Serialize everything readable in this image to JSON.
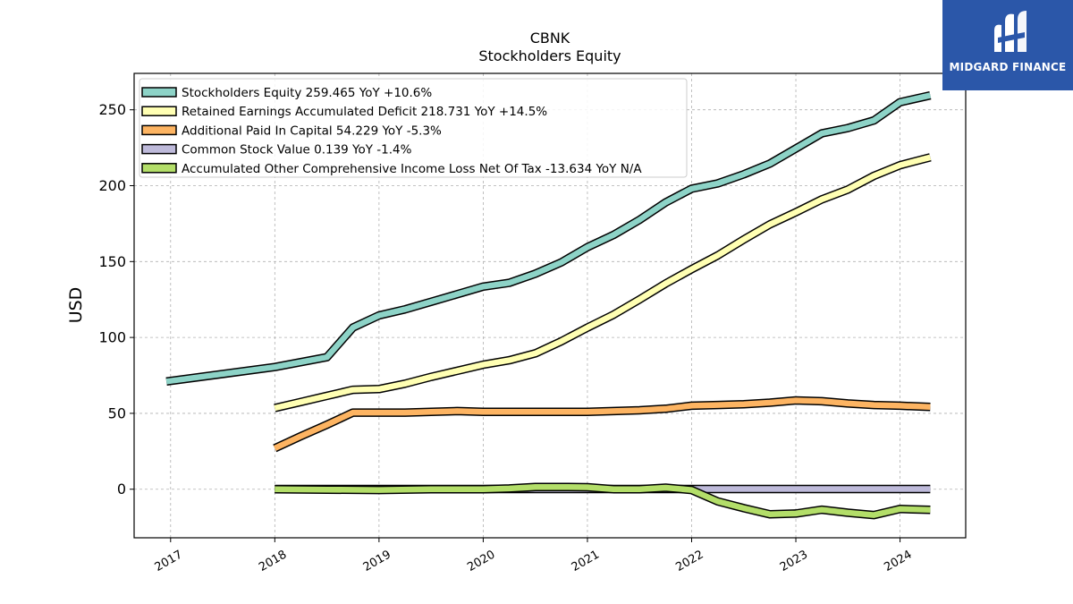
{
  "chart_data": {
    "type": "line",
    "title": "CBNK",
    "subtitle": "Stockholders  Equity",
    "ylabel": "USD",
    "xlabel": "",
    "xlim": [
      2016.65,
      2024.63
    ],
    "ylim": [
      -32,
      274
    ],
    "xticks": [
      2017,
      2018,
      2019,
      2020,
      2021,
      2022,
      2023,
      2024
    ],
    "xtick_labels": [
      "2017",
      "2018",
      "2019",
      "2020",
      "2021",
      "2022",
      "2023",
      "2024"
    ],
    "yticks": [
      0,
      50,
      100,
      150,
      200,
      250
    ],
    "ytick_labels": [
      "0",
      "50",
      "100",
      "150",
      "200",
      "250"
    ],
    "grid": true,
    "legend_position": "top-left",
    "series": [
      {
        "name": "Stockholders Equity  259.465 YoY +10.6%",
        "color": "#8dd3c7",
        "points": [
          [
            2016.96,
            71
          ],
          [
            2018.0,
            80.5
          ],
          [
            2018.5,
            87
          ],
          [
            2018.75,
            106.5
          ],
          [
            2019.0,
            114.5
          ],
          [
            2019.25,
            118.5
          ],
          [
            2019.5,
            123.5
          ],
          [
            2019.75,
            128.5
          ],
          [
            2020.0,
            133.5
          ],
          [
            2020.25,
            136
          ],
          [
            2020.5,
            142
          ],
          [
            2020.75,
            149.5
          ],
          [
            2021.0,
            159.5
          ],
          [
            2021.25,
            167.5
          ],
          [
            2021.5,
            177.5
          ],
          [
            2021.75,
            189
          ],
          [
            2022.0,
            198
          ],
          [
            2022.25,
            201.5
          ],
          [
            2022.5,
            207.5
          ],
          [
            2022.75,
            214.5
          ],
          [
            2023.0,
            224.5
          ],
          [
            2023.25,
            234.5
          ],
          [
            2023.5,
            238
          ],
          [
            2023.75,
            243
          ],
          [
            2024.0,
            255
          ],
          [
            2024.29,
            259.5
          ]
        ]
      },
      {
        "name": "Retained Earnings Accumulated Deficit  218.731 YoY +14.5%",
        "color": "#ffffb3",
        "points": [
          [
            2018.0,
            53.5
          ],
          [
            2018.25,
            57.5
          ],
          [
            2018.5,
            61.5
          ],
          [
            2018.75,
            65.5
          ],
          [
            2019.0,
            66
          ],
          [
            2019.25,
            69.5
          ],
          [
            2019.5,
            74
          ],
          [
            2019.75,
            78
          ],
          [
            2020.0,
            82
          ],
          [
            2020.25,
            85
          ],
          [
            2020.5,
            89.5
          ],
          [
            2020.75,
            97.5
          ],
          [
            2021.0,
            106.5
          ],
          [
            2021.25,
            115
          ],
          [
            2021.5,
            125
          ],
          [
            2021.75,
            135.5
          ],
          [
            2022.0,
            145
          ],
          [
            2022.25,
            154
          ],
          [
            2022.5,
            164.5
          ],
          [
            2022.75,
            174.5
          ],
          [
            2023.0,
            182.5
          ],
          [
            2023.25,
            191
          ],
          [
            2023.5,
            197.5
          ],
          [
            2023.75,
            206.5
          ],
          [
            2024.0,
            213.5
          ],
          [
            2024.29,
            218.7
          ]
        ]
      },
      {
        "name": "Additional Paid In Capital  54.229 YoY -5.3%",
        "color": "#fdb462",
        "points": [
          [
            2018.0,
            27
          ],
          [
            2018.25,
            35
          ],
          [
            2018.5,
            42.5
          ],
          [
            2018.75,
            50.5
          ],
          [
            2019.0,
            50.5
          ],
          [
            2019.25,
            50.5
          ],
          [
            2019.5,
            51
          ],
          [
            2019.75,
            51.5
          ],
          [
            2020.0,
            51
          ],
          [
            2020.25,
            51
          ],
          [
            2020.5,
            51
          ],
          [
            2020.75,
            51
          ],
          [
            2021.0,
            51
          ],
          [
            2021.25,
            51.5
          ],
          [
            2021.5,
            52
          ],
          [
            2021.75,
            53
          ],
          [
            2022.0,
            55
          ],
          [
            2022.25,
            55.5
          ],
          [
            2022.5,
            56
          ],
          [
            2022.75,
            57
          ],
          [
            2023.0,
            58.5
          ],
          [
            2023.25,
            58
          ],
          [
            2023.5,
            56.5
          ],
          [
            2023.75,
            55.5
          ],
          [
            2024.0,
            55
          ],
          [
            2024.29,
            54.2
          ]
        ]
      },
      {
        "name": "Common Stock Value  0.139 YoY -1.4%",
        "color": "#bebada",
        "points": [
          [
            2018.0,
            0.14
          ],
          [
            2019.0,
            0.14
          ],
          [
            2020.0,
            0.14
          ],
          [
            2021.0,
            0.14
          ],
          [
            2022.0,
            0.14
          ],
          [
            2023.0,
            0.14
          ],
          [
            2024.0,
            0.14
          ],
          [
            2024.29,
            0.139
          ]
        ]
      },
      {
        "name": "Accumulated Other Comprehensive Income Loss Net Of Tax  -13.634 YoY N/A",
        "color": "#b3de69",
        "points": [
          [
            2018.0,
            0
          ],
          [
            2018.5,
            -0.3
          ],
          [
            2019.0,
            -0.5
          ],
          [
            2019.5,
            0
          ],
          [
            2020.0,
            0
          ],
          [
            2020.25,
            0.5
          ],
          [
            2020.5,
            1.5
          ],
          [
            2020.75,
            1.5
          ],
          [
            2021.0,
            1.3
          ],
          [
            2021.25,
            0
          ],
          [
            2021.5,
            0
          ],
          [
            2021.75,
            1
          ],
          [
            2022.0,
            -0.5
          ],
          [
            2022.25,
            -8
          ],
          [
            2022.5,
            -12.5
          ],
          [
            2022.75,
            -16.5
          ],
          [
            2023.0,
            -16
          ],
          [
            2023.25,
            -13.5
          ],
          [
            2023.5,
            -15.5
          ],
          [
            2023.75,
            -17
          ],
          [
            2024.0,
            -13
          ],
          [
            2024.29,
            -13.6
          ]
        ]
      }
    ]
  },
  "logo": {
    "text": "MIDGARD FINANCE",
    "name": "midgard-finance-logo"
  }
}
